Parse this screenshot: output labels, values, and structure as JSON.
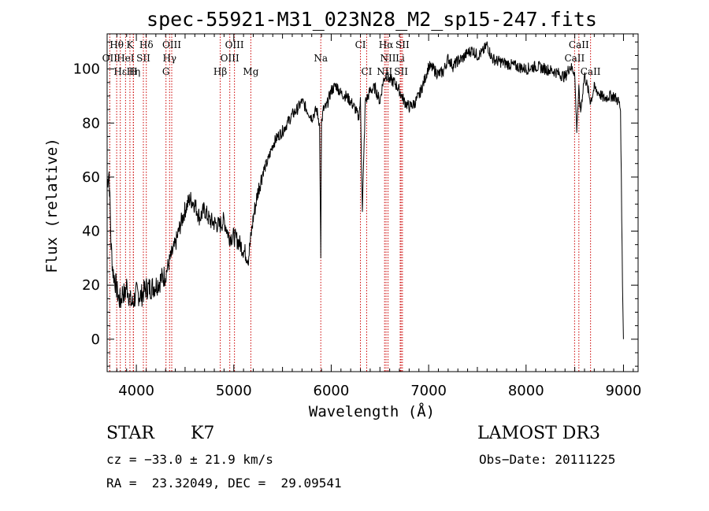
{
  "chart_data": {
    "type": "line",
    "title": "spec-55921-M31_023N28_M2_sp15-247.fits",
    "xlabel": "Wavelength (Å)",
    "ylabel": "Flux (relative)",
    "xlim": [
      3700,
      9150
    ],
    "ylim": [
      -12,
      113
    ],
    "xticks": [
      4000,
      5000,
      6000,
      7000,
      8000,
      9000
    ],
    "yticks": [
      0,
      20,
      40,
      60,
      80,
      100
    ],
    "grid": false,
    "line_color": "#000000",
    "marker_color": "#cc0000",
    "spectrum": {
      "x": [
        3700,
        3720,
        3740,
        3760,
        3780,
        3800,
        3820,
        3840,
        3860,
        3880,
        3900,
        3920,
        3940,
        3960,
        3980,
        4000,
        4050,
        4100,
        4150,
        4200,
        4250,
        4300,
        4350,
        4400,
        4450,
        4500,
        4550,
        4600,
        4650,
        4700,
        4750,
        4800,
        4850,
        4900,
        4950,
        5000,
        5050,
        5100,
        5150,
        5200,
        5250,
        5300,
        5350,
        5400,
        5450,
        5500,
        5550,
        5600,
        5650,
        5700,
        5750,
        5800,
        5850,
        5880,
        5893,
        5900,
        5920,
        5950,
        6000,
        6050,
        6100,
        6150,
        6200,
        6250,
        6280,
        6300,
        6320,
        6350,
        6380,
        6400,
        6450,
        6500,
        6530,
        6563,
        6600,
        6650,
        6700,
        6750,
        6800,
        6850,
        6900,
        6950,
        7000,
        7050,
        7100,
        7150,
        7200,
        7250,
        7300,
        7350,
        7400,
        7450,
        7500,
        7550,
        7600,
        7650,
        7700,
        7800,
        7900,
        8000,
        8100,
        8200,
        8300,
        8400,
        8450,
        8498,
        8520,
        8542,
        8560,
        8600,
        8662,
        8700,
        8750,
        8800,
        8850,
        8900,
        8950,
        8970,
        8990,
        9000
      ],
      "y": [
        58,
        62,
        35,
        25,
        22,
        18,
        15,
        14,
        18,
        16,
        20,
        17,
        14,
        13,
        15,
        17,
        16,
        19,
        19,
        20,
        22,
        24,
        30,
        35,
        42,
        48,
        52,
        50,
        45,
        48,
        44,
        43,
        42,
        44,
        38,
        38,
        36,
        33,
        30,
        45,
        55,
        62,
        66,
        72,
        75,
        77,
        80,
        83,
        85,
        88,
        85,
        82,
        85,
        80,
        30,
        80,
        85,
        86,
        92,
        94,
        91,
        90,
        88,
        85,
        82,
        88,
        48,
        88,
        90,
        92,
        93,
        88,
        95,
        98,
        96,
        95,
        92,
        88,
        86,
        87,
        90,
        95,
        101,
        100,
        98,
        99,
        104,
        101,
        103,
        104,
        106,
        107,
        105,
        106,
        109,
        104,
        103,
        102,
        101,
        100,
        101,
        100,
        99,
        97,
        101,
        99,
        78,
        92,
        84,
        98,
        88,
        93,
        91,
        89,
        90,
        90,
        88,
        85,
        20,
        0
      ]
    },
    "lines": [
      {
        "name": "Hθ",
        "x": 3798,
        "row": 0
      },
      {
        "name": "K",
        "x": 3934,
        "row": 0
      },
      {
        "name": "Hδ",
        "x": 4102,
        "row": 0
      },
      {
        "name": "OIII",
        "x": 4363,
        "row": 0
      },
      {
        "name": "OIII",
        "x": 5007,
        "row": 0
      },
      {
        "name": "CI",
        "x": 6300,
        "row": 0
      },
      {
        "name": "Hα",
        "x": 6563,
        "row": 0
      },
      {
        "name": "SII",
        "x": 6731,
        "row": 0
      },
      {
        "name": "CaII",
        "x": 8542,
        "row": 0
      },
      {
        "name": "OII",
        "x": 3727,
        "row": 1
      },
      {
        "name": "HeI",
        "x": 3889,
        "row": 1
      },
      {
        "name": "SII",
        "x": 4072,
        "row": 1
      },
      {
        "name": "Hγ",
        "x": 4341,
        "row": 1
      },
      {
        "name": "OIII",
        "x": 4959,
        "row": 1
      },
      {
        "name": "Na",
        "x": 5893,
        "row": 1
      },
      {
        "name": "NII",
        "x": 6583,
        "row": 1
      },
      {
        "name": "Li",
        "x": 6708,
        "row": 1
      },
      {
        "name": "CaII",
        "x": 8498,
        "row": 1
      },
      {
        "name": "Hε",
        "x": 3835,
        "row": 2
      },
      {
        "name": "Hη",
        "x": 3970,
        "row": 2
      },
      {
        "name": "H",
        "x": 3969,
        "row": 2
      },
      {
        "name": "G",
        "x": 4304,
        "row": 2
      },
      {
        "name": "Hβ",
        "x": 4861,
        "row": 2
      },
      {
        "name": "Mg",
        "x": 5175,
        "row": 2
      },
      {
        "name": "CI",
        "x": 6364,
        "row": 2
      },
      {
        "name": "NII",
        "x": 6548,
        "row": 2
      },
      {
        "name": "SII",
        "x": 6717,
        "row": 2
      },
      {
        "name": "CaII",
        "x": 8662,
        "row": 2
      }
    ]
  },
  "info": {
    "class": "STAR",
    "subclass": "K7",
    "survey": "LAMOST DR3",
    "cz": "cz = −33.0 ± 21.9 km/s",
    "obsdate": "Obs−Date: 20111225",
    "radec": "RA =  23.32049, DEC =  29.09541"
  }
}
